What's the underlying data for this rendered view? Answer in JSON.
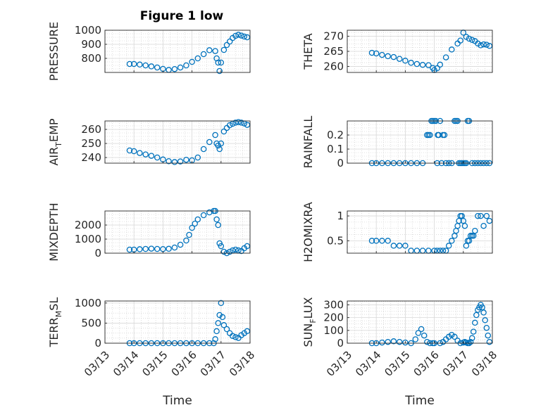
{
  "title": "Figure 1 low",
  "xlabel": "Time",
  "marker_color": "#0072BD",
  "date_ticks": [
    "03/13",
    "03/14",
    "03/15",
    "03/16",
    "03/17",
    "03/18"
  ],
  "chart_data": [
    {
      "type": "scatter",
      "ylabel": "PRESSURE",
      "ylim": [
        700,
        1000
      ],
      "yticks": [
        800,
        900,
        1000
      ],
      "grid": true,
      "marker": "circle",
      "x": [
        13.85,
        14.0,
        14.2,
        14.4,
        14.6,
        14.8,
        15.0,
        15.2,
        15.4,
        15.6,
        15.8,
        16.0,
        16.2,
        16.4,
        16.6,
        16.8,
        16.85,
        16.9,
        16.95,
        17.0,
        17.1,
        17.2,
        17.3,
        17.4,
        17.5,
        17.6,
        17.7,
        17.8,
        17.9
      ],
      "y": [
        760,
        760,
        756,
        750,
        743,
        735,
        725,
        718,
        724,
        735,
        750,
        775,
        800,
        830,
        858,
        852,
        800,
        770,
        710,
        770,
        860,
        895,
        920,
        945,
        960,
        968,
        962,
        955,
        950
      ]
    },
    {
      "type": "scatter",
      "ylabel": "THETA",
      "ylim": [
        258,
        272
      ],
      "yticks": [
        260,
        265,
        270
      ],
      "grid": true,
      "marker": "circle",
      "x": [
        13.85,
        14.0,
        14.2,
        14.4,
        14.6,
        14.8,
        15.0,
        15.2,
        15.4,
        15.6,
        15.8,
        15.95,
        16.0,
        16.1,
        16.2,
        16.4,
        16.6,
        16.8,
        16.9,
        17.0,
        17.1,
        17.2,
        17.3,
        17.4,
        17.5,
        17.6,
        17.7,
        17.8,
        17.9
      ],
      "y": [
        264.5,
        264.3,
        263.8,
        263.4,
        263.1,
        262.5,
        261.9,
        261.2,
        260.8,
        260.5,
        260.4,
        259.5,
        258.8,
        259.4,
        260.6,
        263.0,
        265.6,
        267.6,
        268.6,
        271.2,
        269.8,
        269.2,
        268.8,
        268.4,
        267.6,
        267.0,
        267.3,
        267.2,
        266.8
      ]
    },
    {
      "type": "scatter",
      "ylabel": "AIR_TEMP",
      "ylim": [
        236,
        266
      ],
      "yticks": [
        240,
        250,
        260
      ],
      "grid": true,
      "marker": "circle",
      "x": [
        13.85,
        14.0,
        14.2,
        14.4,
        14.6,
        14.8,
        15.0,
        15.2,
        15.4,
        15.6,
        15.8,
        16.0,
        16.2,
        16.4,
        16.6,
        16.8,
        16.85,
        16.9,
        16.95,
        17.0,
        17.1,
        17.2,
        17.3,
        17.4,
        17.5,
        17.6,
        17.7,
        17.8,
        17.9
      ],
      "y": [
        245,
        244.5,
        243.2,
        242.2,
        241.2,
        240.0,
        238.6,
        237.4,
        236.8,
        237.2,
        238.4,
        238.0,
        240.0,
        246.0,
        251.0,
        256.0,
        250.0,
        248.5,
        246.0,
        250.0,
        258.5,
        261.0,
        263.0,
        264.0,
        264.8,
        265.2,
        264.8,
        264.2,
        263.2
      ]
    },
    {
      "type": "scatter",
      "ylabel": "RAINFALL",
      "ylim": [
        0,
        0.3
      ],
      "yticks": [
        0,
        0.1,
        0.2
      ],
      "grid": true,
      "marker": "circle",
      "x": [
        13.85,
        14.0,
        14.2,
        14.4,
        14.6,
        14.8,
        15.0,
        15.2,
        15.4,
        15.6,
        15.75,
        15.8,
        15.85,
        15.9,
        15.95,
        16.0,
        16.05,
        16.1,
        16.12,
        16.15,
        16.2,
        16.25,
        16.3,
        16.35,
        16.4,
        16.5,
        16.6,
        16.7,
        16.75,
        16.8,
        16.85,
        16.9,
        16.95,
        17.0,
        17.05,
        17.1,
        17.15,
        17.2,
        17.3,
        17.4,
        17.5,
        17.6,
        17.7,
        17.8,
        17.9
      ],
      "y": [
        0,
        0,
        0,
        0,
        0,
        0,
        0,
        0,
        0,
        0,
        0.2,
        0.2,
        0.2,
        0.3,
        0.3,
        0.3,
        0.3,
        0,
        0.2,
        0.2,
        0.3,
        0,
        0.2,
        0.2,
        0,
        0,
        0,
        0.3,
        0.3,
        0.3,
        0,
        0,
        0,
        0,
        0,
        0,
        0.3,
        0.3,
        0,
        0,
        0,
        0,
        0,
        0,
        0
      ]
    },
    {
      "type": "scatter",
      "ylabel": "MIXDEPTH",
      "ylim": [
        0,
        3000
      ],
      "yticks": [
        0,
        1000,
        2000
      ],
      "grid": true,
      "marker": "circle",
      "x": [
        13.85,
        14.0,
        14.2,
        14.4,
        14.6,
        14.8,
        15.0,
        15.2,
        15.4,
        15.6,
        15.8,
        15.9,
        16.0,
        16.1,
        16.2,
        16.4,
        16.6,
        16.75,
        16.8,
        16.85,
        16.9,
        16.95,
        17.0,
        17.1,
        17.2,
        17.3,
        17.4,
        17.5,
        17.6,
        17.7,
        17.8,
        17.9
      ],
      "y": [
        250,
        250,
        280,
        300,
        320,
        300,
        290,
        310,
        400,
        600,
        900,
        1300,
        1800,
        2100,
        2400,
        2700,
        2900,
        3000,
        3000,
        2400,
        2000,
        700,
        500,
        100,
        0,
        100,
        200,
        250,
        200,
        150,
        350,
        500
      ]
    },
    {
      "type": "scatter",
      "ylabel": "H2OMIXRA",
      "ylim": [
        0.25,
        1.1
      ],
      "yticks": [
        0.5,
        1
      ],
      "grid": true,
      "marker": "circle",
      "x": [
        13.85,
        14.0,
        14.2,
        14.4,
        14.6,
        14.8,
        15.0,
        15.2,
        15.4,
        15.6,
        15.8,
        16.0,
        16.1,
        16.2,
        16.3,
        16.4,
        16.5,
        16.6,
        16.7,
        16.75,
        16.8,
        16.85,
        16.9,
        16.95,
        17.0,
        17.05,
        17.1,
        17.15,
        17.2,
        17.25,
        17.3,
        17.35,
        17.4,
        17.5,
        17.6,
        17.7,
        17.8,
        17.9
      ],
      "y": [
        0.5,
        0.5,
        0.5,
        0.5,
        0.4,
        0.4,
        0.4,
        0.3,
        0.3,
        0.3,
        0.3,
        0.3,
        0.3,
        0.3,
        0.3,
        0.3,
        0.4,
        0.5,
        0.6,
        0.7,
        0.8,
        0.9,
        1.0,
        1.0,
        0.9,
        0.8,
        0.4,
        0.5,
        0.5,
        0.6,
        0.6,
        0.6,
        0.7,
        1.0,
        1.0,
        0.8,
        1.0,
        0.9
      ]
    },
    {
      "type": "scatter",
      "ylabel": "TERR_MSL",
      "ylim": [
        0,
        1050
      ],
      "yticks": [
        0,
        500,
        1000
      ],
      "grid": true,
      "marker": "circle",
      "x": [
        13.85,
        14.0,
        14.2,
        14.4,
        14.6,
        14.8,
        15.0,
        15.2,
        15.4,
        15.6,
        15.8,
        16.0,
        16.2,
        16.4,
        16.6,
        16.75,
        16.8,
        16.85,
        16.9,
        16.95,
        17.0,
        17.05,
        17.1,
        17.2,
        17.3,
        17.4,
        17.5,
        17.6,
        17.7,
        17.8,
        17.9
      ],
      "y": [
        0,
        0,
        0,
        0,
        0,
        0,
        0,
        0,
        0,
        0,
        0,
        0,
        0,
        0,
        0,
        0,
        100,
        300,
        500,
        700,
        1000,
        650,
        450,
        350,
        250,
        180,
        150,
        130,
        200,
        250,
        300
      ]
    },
    {
      "type": "scatter",
      "ylabel": "SUN_FLUX",
      "ylim": [
        0,
        330
      ],
      "yticks": [
        0,
        100,
        200,
        300
      ],
      "grid": true,
      "marker": "circle",
      "x": [
        13.85,
        14.0,
        14.2,
        14.4,
        14.6,
        14.8,
        15.0,
        15.2,
        15.35,
        15.45,
        15.55,
        15.65,
        15.75,
        15.85,
        15.95,
        16.0,
        16.2,
        16.3,
        16.4,
        16.5,
        16.6,
        16.7,
        16.8,
        16.9,
        17.0,
        17.05,
        17.1,
        17.15,
        17.2,
        17.25,
        17.3,
        17.35,
        17.4,
        17.45,
        17.5,
        17.55,
        17.6,
        17.65,
        17.7,
        17.75,
        17.8,
        17.85,
        17.9
      ],
      "y": [
        0,
        0,
        5,
        10,
        15,
        10,
        5,
        0,
        30,
        80,
        110,
        60,
        10,
        0,
        0,
        0,
        0,
        10,
        30,
        50,
        65,
        50,
        20,
        0,
        5,
        10,
        5,
        0,
        0,
        10,
        40,
        90,
        160,
        220,
        260,
        280,
        300,
        280,
        240,
        180,
        120,
        60,
        10
      ]
    }
  ]
}
